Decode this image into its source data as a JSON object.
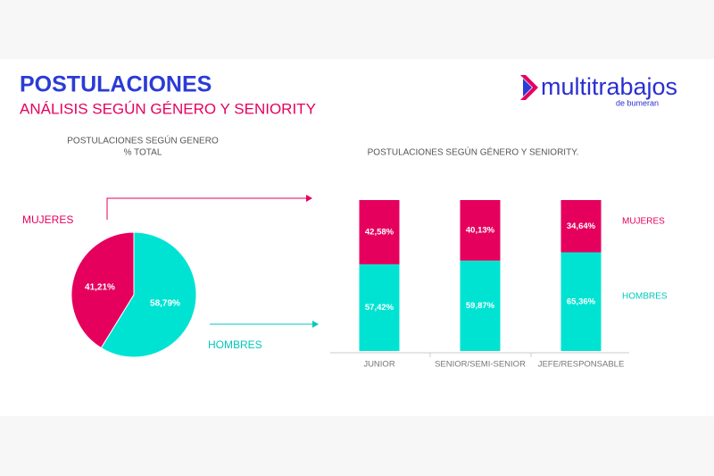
{
  "header": {
    "title": "POSTULACIONES",
    "subtitle": "ANÁLISIS SEGÚN GÉNERO Y SENIORITY"
  },
  "logo": {
    "name": "multitrabajos",
    "tagline": "de bumeran"
  },
  "chart_data": [
    {
      "type": "pie",
      "title": "POSTULACIONES SEGÚN GENERO",
      "subtitle": "% TOTAL",
      "categories": [
        "MUJERES",
        "HOMBRES"
      ],
      "values": [
        41.21,
        58.79
      ],
      "value_labels": [
        "41,21%",
        "58,79%"
      ],
      "colors": [
        "#e5005e",
        "#00e3d3"
      ]
    },
    {
      "type": "stacked-bar",
      "title": "POSTULACIONES SEGÚN GÉNERO Y SENIORITY.",
      "categories": [
        "JUNIOR",
        "SENIOR/SEMI-SENIOR",
        "JEFE/RESPONSABLE"
      ],
      "ylim": [
        0,
        100
      ],
      "series": [
        {
          "name": "HOMBRES",
          "color": "#00e3d3",
          "values": [
            57.42,
            59.87,
            65.36
          ],
          "value_labels": [
            "57,42%",
            "59,87%",
            "65,36%"
          ]
        },
        {
          "name": "MUJERES",
          "color": "#e5005e",
          "values": [
            42.58,
            40.13,
            34.64
          ],
          "value_labels": [
            "42,58%",
            "40,13%",
            "34,64%"
          ]
        }
      ]
    }
  ]
}
